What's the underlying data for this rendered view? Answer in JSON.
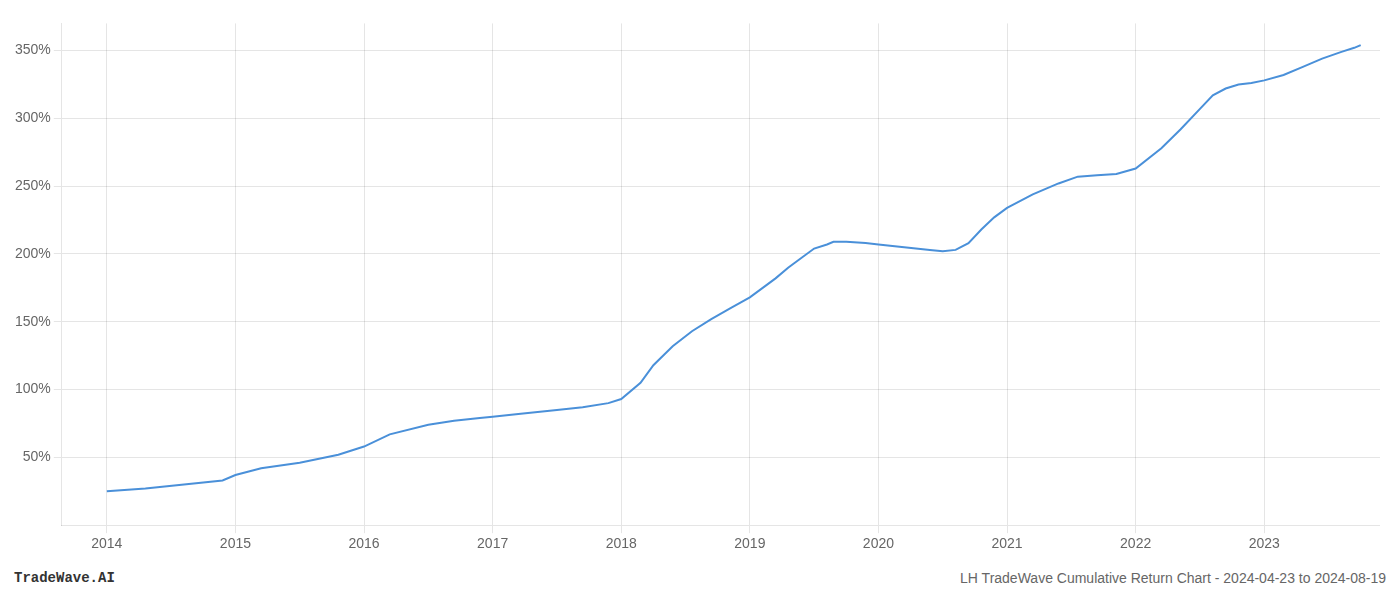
{
  "chart_data": {
    "type": "line",
    "x": [
      2014.0,
      2014.3,
      2014.6,
      2014.9,
      2015.0,
      2015.2,
      2015.5,
      2015.8,
      2016.0,
      2016.2,
      2016.5,
      2016.7,
      2016.9,
      2017.0,
      2017.2,
      2017.5,
      2017.7,
      2017.9,
      2018.0,
      2018.15,
      2018.25,
      2018.4,
      2018.55,
      2018.7,
      2018.85,
      2019.0,
      2019.1,
      2019.2,
      2019.3,
      2019.4,
      2019.5,
      2019.6,
      2019.65,
      2019.75,
      2019.9,
      2020.0,
      2020.2,
      2020.4,
      2020.5,
      2020.6,
      2020.7,
      2020.8,
      2020.9,
      2021.0,
      2021.2,
      2021.4,
      2021.55,
      2021.7,
      2021.85,
      2022.0,
      2022.2,
      2022.35,
      2022.5,
      2022.6,
      2022.7,
      2022.8,
      2022.9,
      2023.0,
      2023.15,
      2023.3,
      2023.45,
      2023.6,
      2023.7,
      2023.75
    ],
    "values": [
      25,
      27,
      30,
      33,
      37,
      42,
      46,
      52,
      58,
      67,
      74,
      77,
      79,
      80,
      82,
      85,
      87,
      90,
      93,
      105,
      118,
      132,
      143,
      152,
      160,
      168,
      175,
      182,
      190,
      197,
      204,
      207,
      209,
      209,
      208,
      207,
      205,
      203,
      202,
      203,
      208,
      218,
      227,
      234,
      244,
      252,
      257,
      258,
      259,
      263,
      278,
      292,
      307,
      317,
      322,
      325,
      326,
      328,
      332,
      338,
      344,
      349,
      352,
      354
    ],
    "color": "#4a90d9",
    "xlim": [
      2013.65,
      2023.9
    ],
    "xticks": [
      2014,
      2015,
      2016,
      2017,
      2018,
      2019,
      2020,
      2021,
      2022,
      2023
    ],
    "ylim": [
      0,
      370
    ],
    "yticks": [
      {
        "value": 50,
        "label": "50%"
      },
      {
        "value": 100,
        "label": "100%"
      },
      {
        "value": 150,
        "label": "150%"
      },
      {
        "value": 200,
        "label": "200%"
      },
      {
        "value": 250,
        "label": "250%"
      },
      {
        "value": 300,
        "label": "300%"
      },
      {
        "value": 350,
        "label": "350%"
      }
    ],
    "grid": true,
    "annotations": [
      "TradeWave.AI",
      "LH TradeWave Cumulative Return Chart - 2024-04-23 to 2024-08-19"
    ]
  }
}
